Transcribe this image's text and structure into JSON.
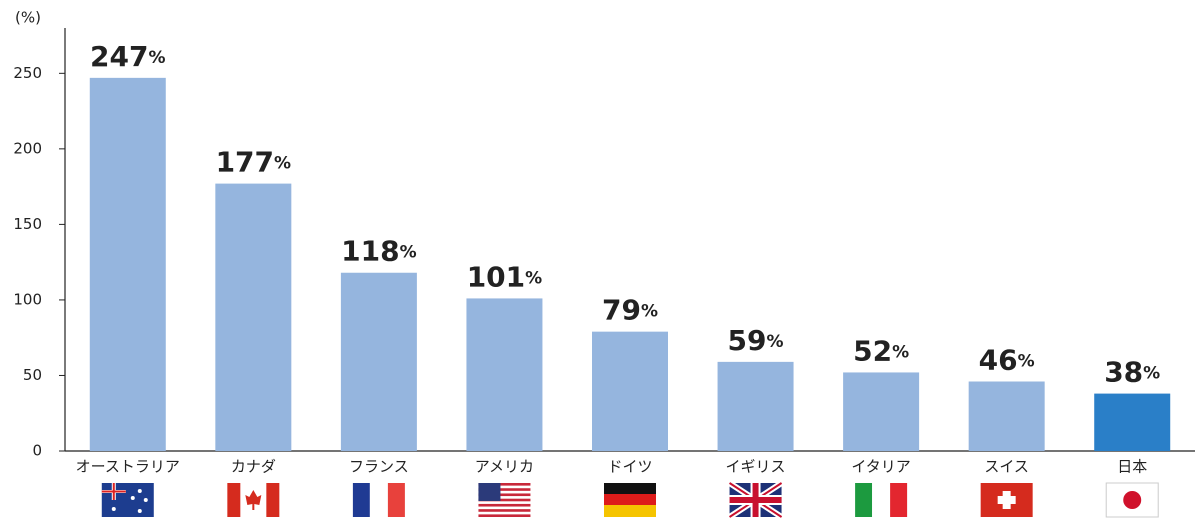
{
  "chart_data": {
    "type": "bar",
    "y_label": "(%)",
    "categories": [
      "オーストラリア",
      "カナダ",
      "フランス",
      "アメリカ",
      "ドイツ",
      "イギリス",
      "イタリア",
      "スイス",
      "日本"
    ],
    "values": [
      247,
      177,
      118,
      101,
      79,
      59,
      52,
      46,
      38
    ],
    "value_labels": [
      "247%",
      "177%",
      "118%",
      "101%",
      "79%",
      "59%",
      "52%",
      "46%",
      "38%"
    ],
    "colors": [
      "#95b5de",
      "#95b5de",
      "#95b5de",
      "#95b5de",
      "#95b5de",
      "#95b5de",
      "#95b5de",
      "#95b5de",
      "#2a7fc8"
    ],
    "ylim": [
      0,
      280
    ],
    "yticks": [
      0,
      50,
      100,
      150,
      200,
      250
    ],
    "grid": false
  }
}
